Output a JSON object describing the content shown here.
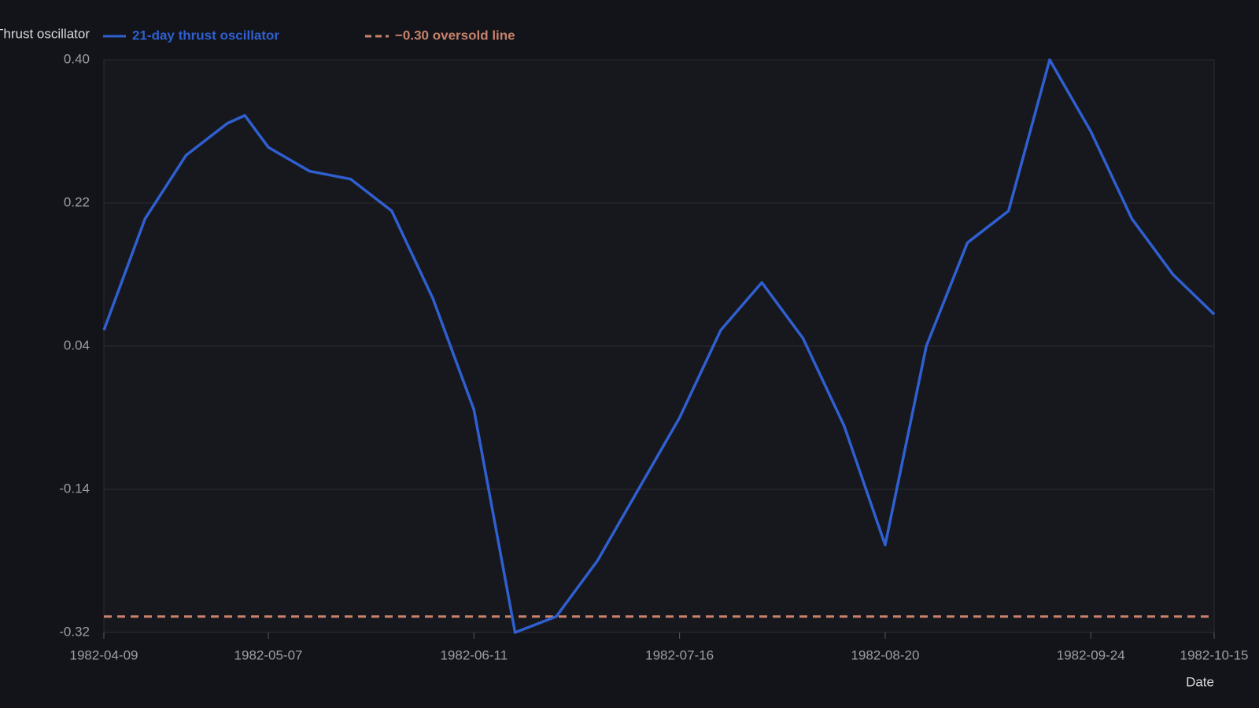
{
  "chart_data": {
    "type": "line",
    "y_label": "Thrust oscillator",
    "x_label": "Date",
    "x": [
      "1982-04-09",
      "1982-04-16",
      "1982-04-23",
      "1982-04-30",
      "1982-05-03",
      "1982-05-07",
      "1982-05-14",
      "1982-05-21",
      "1982-05-28",
      "1982-06-04",
      "1982-06-11",
      "1982-06-18",
      "1982-06-25",
      "1982-07-02",
      "1982-07-09",
      "1982-07-16",
      "1982-07-23",
      "1982-07-30",
      "1982-08-06",
      "1982-08-13",
      "1982-08-20",
      "1982-08-27",
      "1982-09-03",
      "1982-09-10",
      "1982-09-17",
      "1982-09-24",
      "1982-10-01",
      "1982-10-08",
      "1982-10-15"
    ],
    "series": [
      {
        "name": "21-day thrust oscillator",
        "color": "#2f5fd0",
        "values": [
          0.06,
          0.2,
          0.28,
          0.32,
          0.33,
          0.29,
          0.26,
          0.25,
          0.21,
          0.1,
          -0.04,
          -0.32,
          -0.3,
          -0.23,
          -0.14,
          -0.05,
          0.06,
          0.12,
          0.05,
          -0.06,
          -0.21,
          0.04,
          0.17,
          0.21,
          0.4,
          0.31,
          0.2,
          0.13,
          0.08
        ]
      }
    ],
    "reference_line": {
      "name": "−0.30 oversold line",
      "value": -0.3,
      "color": "#c9826b"
    },
    "xlim": [
      "1982-04-09",
      "1982-10-15"
    ],
    "xticks": [
      "1982-04-09",
      "1982-05-07",
      "1982-06-11",
      "1982-07-16",
      "1982-08-20",
      "1982-09-24",
      "1982-10-15"
    ],
    "ylim": [
      -0.32,
      0.4
    ],
    "yticks": [
      {
        "value": 0.4,
        "label": "0.40"
      },
      0.22,
      0.04,
      -0.14,
      -0.32
    ],
    "grid": true
  }
}
